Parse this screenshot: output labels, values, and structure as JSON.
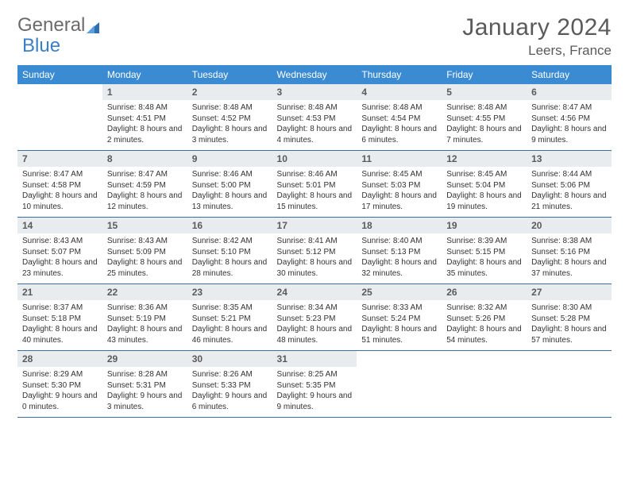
{
  "logo": {
    "text1": "General",
    "text2": "Blue"
  },
  "title": "January 2024",
  "location": "Leers, France",
  "colors": {
    "header_bg": "#3a8bd1",
    "header_text": "#ffffff",
    "daynum_bg": "#e9ecef",
    "rule": "#3a6fa5",
    "logo_gray": "#6b6b6b",
    "logo_blue": "#3a7fc4"
  },
  "dow": [
    "Sunday",
    "Monday",
    "Tuesday",
    "Wednesday",
    "Thursday",
    "Friday",
    "Saturday"
  ],
  "start_offset": 1,
  "days": [
    {
      "n": 1,
      "sunrise": "8:48 AM",
      "sunset": "4:51 PM",
      "daylight": "8 hours and 2 minutes."
    },
    {
      "n": 2,
      "sunrise": "8:48 AM",
      "sunset": "4:52 PM",
      "daylight": "8 hours and 3 minutes."
    },
    {
      "n": 3,
      "sunrise": "8:48 AM",
      "sunset": "4:53 PM",
      "daylight": "8 hours and 4 minutes."
    },
    {
      "n": 4,
      "sunrise": "8:48 AM",
      "sunset": "4:54 PM",
      "daylight": "8 hours and 6 minutes."
    },
    {
      "n": 5,
      "sunrise": "8:48 AM",
      "sunset": "4:55 PM",
      "daylight": "8 hours and 7 minutes."
    },
    {
      "n": 6,
      "sunrise": "8:47 AM",
      "sunset": "4:56 PM",
      "daylight": "8 hours and 9 minutes."
    },
    {
      "n": 7,
      "sunrise": "8:47 AM",
      "sunset": "4:58 PM",
      "daylight": "8 hours and 10 minutes."
    },
    {
      "n": 8,
      "sunrise": "8:47 AM",
      "sunset": "4:59 PM",
      "daylight": "8 hours and 12 minutes."
    },
    {
      "n": 9,
      "sunrise": "8:46 AM",
      "sunset": "5:00 PM",
      "daylight": "8 hours and 13 minutes."
    },
    {
      "n": 10,
      "sunrise": "8:46 AM",
      "sunset": "5:01 PM",
      "daylight": "8 hours and 15 minutes."
    },
    {
      "n": 11,
      "sunrise": "8:45 AM",
      "sunset": "5:03 PM",
      "daylight": "8 hours and 17 minutes."
    },
    {
      "n": 12,
      "sunrise": "8:45 AM",
      "sunset": "5:04 PM",
      "daylight": "8 hours and 19 minutes."
    },
    {
      "n": 13,
      "sunrise": "8:44 AM",
      "sunset": "5:06 PM",
      "daylight": "8 hours and 21 minutes."
    },
    {
      "n": 14,
      "sunrise": "8:43 AM",
      "sunset": "5:07 PM",
      "daylight": "8 hours and 23 minutes."
    },
    {
      "n": 15,
      "sunrise": "8:43 AM",
      "sunset": "5:09 PM",
      "daylight": "8 hours and 25 minutes."
    },
    {
      "n": 16,
      "sunrise": "8:42 AM",
      "sunset": "5:10 PM",
      "daylight": "8 hours and 28 minutes."
    },
    {
      "n": 17,
      "sunrise": "8:41 AM",
      "sunset": "5:12 PM",
      "daylight": "8 hours and 30 minutes."
    },
    {
      "n": 18,
      "sunrise": "8:40 AM",
      "sunset": "5:13 PM",
      "daylight": "8 hours and 32 minutes."
    },
    {
      "n": 19,
      "sunrise": "8:39 AM",
      "sunset": "5:15 PM",
      "daylight": "8 hours and 35 minutes."
    },
    {
      "n": 20,
      "sunrise": "8:38 AM",
      "sunset": "5:16 PM",
      "daylight": "8 hours and 37 minutes."
    },
    {
      "n": 21,
      "sunrise": "8:37 AM",
      "sunset": "5:18 PM",
      "daylight": "8 hours and 40 minutes."
    },
    {
      "n": 22,
      "sunrise": "8:36 AM",
      "sunset": "5:19 PM",
      "daylight": "8 hours and 43 minutes."
    },
    {
      "n": 23,
      "sunrise": "8:35 AM",
      "sunset": "5:21 PM",
      "daylight": "8 hours and 46 minutes."
    },
    {
      "n": 24,
      "sunrise": "8:34 AM",
      "sunset": "5:23 PM",
      "daylight": "8 hours and 48 minutes."
    },
    {
      "n": 25,
      "sunrise": "8:33 AM",
      "sunset": "5:24 PM",
      "daylight": "8 hours and 51 minutes."
    },
    {
      "n": 26,
      "sunrise": "8:32 AM",
      "sunset": "5:26 PM",
      "daylight": "8 hours and 54 minutes."
    },
    {
      "n": 27,
      "sunrise": "8:30 AM",
      "sunset": "5:28 PM",
      "daylight": "8 hours and 57 minutes."
    },
    {
      "n": 28,
      "sunrise": "8:29 AM",
      "sunset": "5:30 PM",
      "daylight": "9 hours and 0 minutes."
    },
    {
      "n": 29,
      "sunrise": "8:28 AM",
      "sunset": "5:31 PM",
      "daylight": "9 hours and 3 minutes."
    },
    {
      "n": 30,
      "sunrise": "8:26 AM",
      "sunset": "5:33 PM",
      "daylight": "9 hours and 6 minutes."
    },
    {
      "n": 31,
      "sunrise": "8:25 AM",
      "sunset": "5:35 PM",
      "daylight": "9 hours and 9 minutes."
    }
  ],
  "labels": {
    "sunrise": "Sunrise:",
    "sunset": "Sunset:",
    "daylight": "Daylight:"
  }
}
